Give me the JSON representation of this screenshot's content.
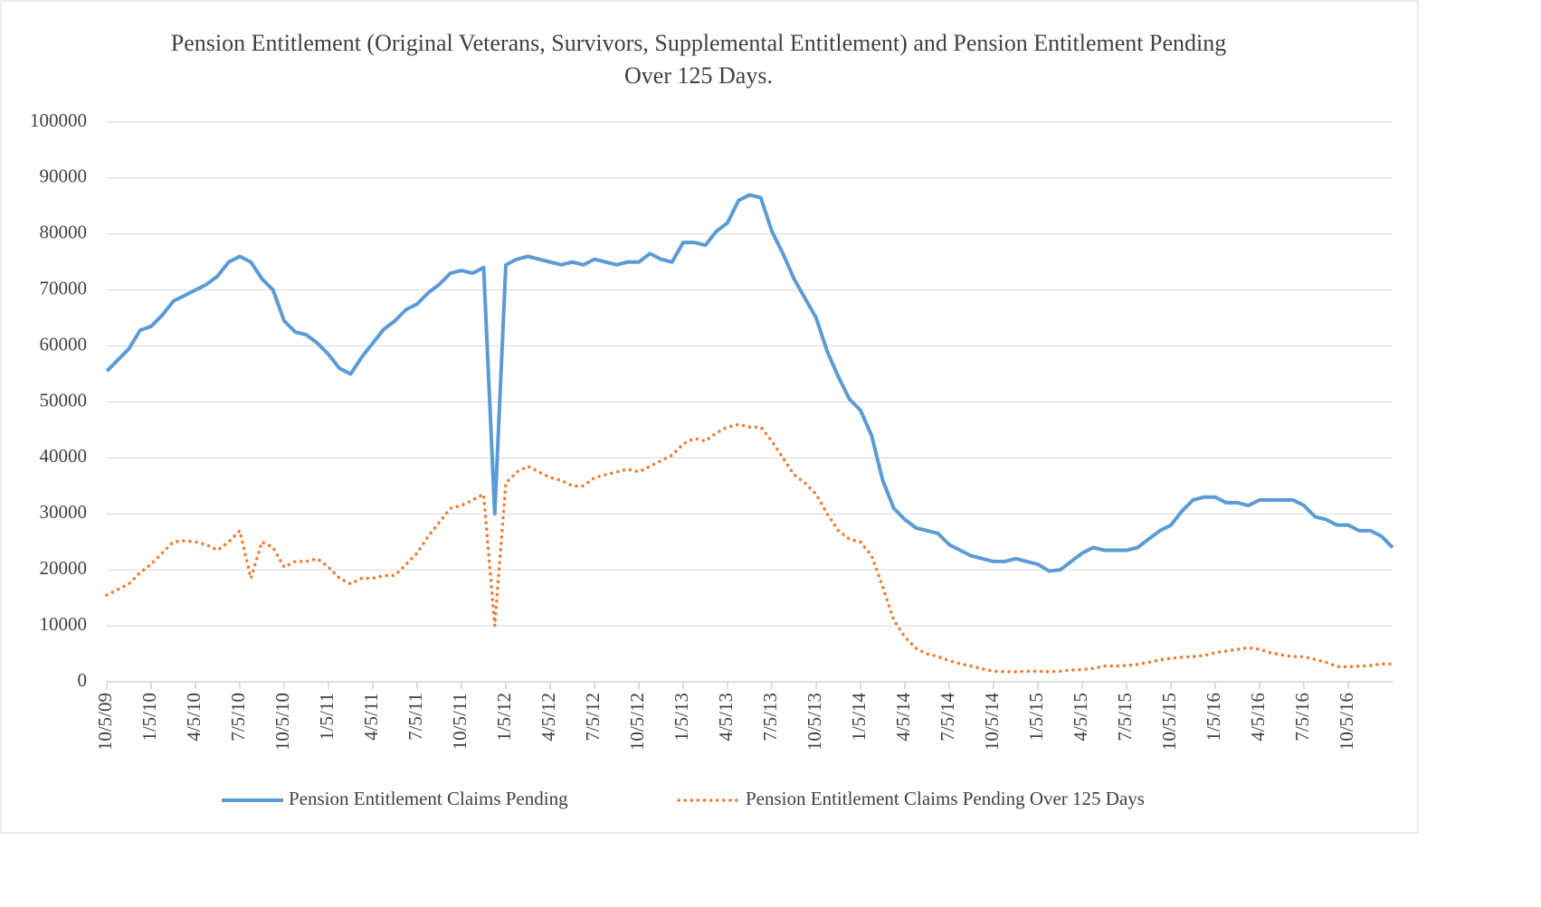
{
  "chart_data": {
    "type": "line",
    "title": "Pension Entitlement (Original Veterans, Survivors, Supplemental Entitlement) and Pension Entitlement Pending Over 125 Days.",
    "categories": [
      "10/5/09",
      null,
      null,
      null,
      "1/5/10",
      null,
      null,
      null,
      "4/5/10",
      null,
      null,
      null,
      "7/5/10",
      null,
      null,
      null,
      "10/5/10",
      null,
      null,
      null,
      "1/5/11",
      null,
      null,
      null,
      "4/5/11",
      null,
      null,
      null,
      "7/5/11",
      null,
      null,
      null,
      "10/5/11",
      null,
      null,
      null,
      "1/5/12",
      null,
      null,
      null,
      "4/5/12",
      null,
      null,
      null,
      "7/5/12",
      null,
      null,
      null,
      "10/5/12",
      null,
      null,
      null,
      "1/5/13",
      null,
      null,
      null,
      "4/5/13",
      null,
      null,
      null,
      "7/5/13",
      null,
      null,
      null,
      "10/5/13",
      null,
      null,
      null,
      "1/5/14",
      null,
      null,
      null,
      "4/5/14",
      null,
      null,
      null,
      "7/5/14",
      null,
      null,
      null,
      "10/5/14",
      null,
      null,
      null,
      "1/5/15",
      null,
      null,
      null,
      "4/5/15",
      null,
      null,
      null,
      "7/5/15",
      null,
      null,
      null,
      "10/5/15",
      null,
      null,
      null,
      "1/5/16",
      null,
      null,
      null,
      "4/5/16",
      null,
      null,
      null,
      "7/5/16",
      null,
      null,
      null,
      "10/5/16",
      null,
      null,
      null,
      null
    ],
    "series": [
      {
        "name": "Pension Entitlement Claims Pending",
        "color": "#5b9bd5",
        "style": "solid",
        "values": [
          55500,
          57500,
          59500,
          62800,
          63500,
          65500,
          68000,
          69000,
          70000,
          71000,
          72500,
          75000,
          76000,
          75000,
          72000,
          70000,
          64500,
          62500,
          62000,
          60500,
          58500,
          56000,
          55000,
          58000,
          60500,
          63000,
          64500,
          66500,
          67500,
          69500,
          71000,
          73000,
          73500,
          73000,
          74000,
          30000,
          74500,
          75500,
          76000,
          75500,
          75000,
          74500,
          75000,
          74500,
          75500,
          75000,
          74500,
          75000,
          75000,
          76500,
          75500,
          75000,
          78500,
          78500,
          78000,
          80500,
          82000,
          86000,
          87000,
          86500,
          80500,
          76500,
          72000,
          68500,
          65000,
          59000,
          54500,
          50500,
          48500,
          44000,
          36000,
          31000,
          29000,
          27500,
          27000,
          26500,
          24500,
          23500,
          22500,
          22000,
          21500,
          21500,
          22000,
          21500,
          21000,
          19800,
          20000,
          21500,
          23000,
          24000,
          23500,
          23500,
          23500,
          24000,
          25500,
          27000,
          28000,
          30500,
          32500,
          33000,
          33000,
          32000,
          32000,
          31500,
          32500,
          32500,
          32500,
          32500,
          31500,
          29500,
          29000,
          28000,
          28000,
          27000,
          27000,
          26000,
          24000
        ]
      },
      {
        "name": "Pension Entitlement Claims Pending Over 125 Days",
        "color": "#ed7d31",
        "style": "dotted",
        "values": [
          15500,
          16500,
          17500,
          19500,
          21000,
          23000,
          25000,
          25200,
          25000,
          24500,
          23500,
          25000,
          27000,
          18500,
          25000,
          24000,
          20500,
          21500,
          21500,
          22000,
          20500,
          18500,
          17500,
          18500,
          18500,
          19000,
          19000,
          21000,
          23000,
          26000,
          28500,
          31000,
          31500,
          32500,
          33500,
          10000,
          35500,
          37500,
          38500,
          37500,
          36500,
          36000,
          35000,
          35000,
          36500,
          37000,
          37500,
          38000,
          37500,
          38500,
          39500,
          40500,
          42500,
          43500,
          43000,
          44500,
          45500,
          46000,
          45500,
          45500,
          43000,
          40000,
          37000,
          35500,
          33500,
          30000,
          27000,
          25500,
          25000,
          22500,
          17000,
          11000,
          8000,
          6000,
          5000,
          4500,
          3800,
          3200,
          2800,
          2300,
          1900,
          1800,
          1800,
          1900,
          1900,
          1800,
          1900,
          2100,
          2200,
          2400,
          2800,
          2800,
          2900,
          3100,
          3500,
          3900,
          4200,
          4400,
          4500,
          4700,
          5200,
          5500,
          5800,
          6100,
          5800,
          5200,
          4800,
          4500,
          4500,
          4000,
          3500,
          2700,
          2700,
          2800,
          2900,
          3200,
          3200
        ]
      }
    ],
    "ylim": [
      0,
      100000
    ],
    "yticks": [
      0,
      10000,
      20000,
      30000,
      40000,
      50000,
      60000,
      70000,
      80000,
      90000,
      100000
    ],
    "grid": true,
    "legend": "bottom"
  }
}
